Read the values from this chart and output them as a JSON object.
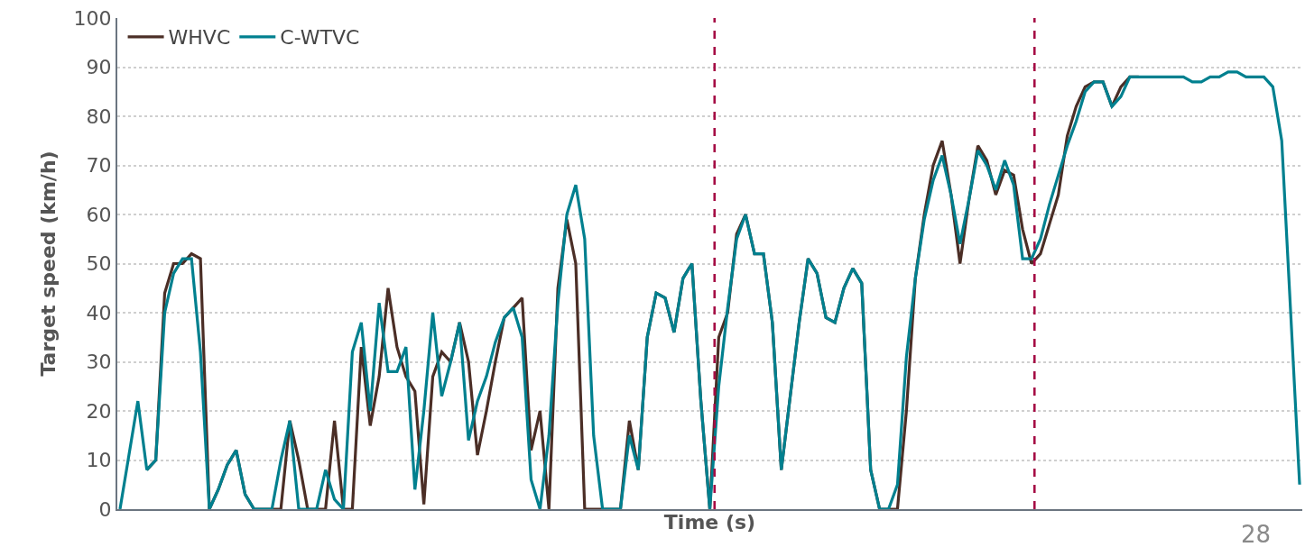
{
  "chart_data": {
    "type": "line",
    "xlabel": "Time (s)",
    "ylabel": "Target speed (km/h)",
    "categories": [
      null,
      null,
      null,
      null,
      null,
      null,
      null,
      null,
      null,
      null,
      null,
      null,
      null,
      null,
      null,
      null,
      null,
      null,
      null,
      null,
      null,
      null,
      null,
      null,
      null,
      null,
      null,
      null,
      null,
      null,
      null,
      null,
      null,
      null,
      null,
      null,
      null,
      null,
      null,
      null,
      null,
      null,
      null,
      null,
      null,
      null,
      null,
      null,
      null,
      null,
      null,
      null,
      null,
      null,
      null,
      null,
      null,
      null,
      null,
      null,
      null,
      null,
      null,
      null,
      null,
      null,
      null,
      null,
      null,
      null,
      null,
      null,
      null,
      null,
      null,
      null,
      null,
      null,
      null,
      null,
      null,
      null,
      null,
      null,
      null,
      null,
      null,
      null,
      null,
      null,
      null,
      null,
      null,
      null,
      null,
      null,
      null,
      null,
      null,
      null,
      null,
      null,
      null,
      null,
      null,
      null,
      null,
      null,
      null,
      null,
      null,
      null,
      null,
      null,
      null,
      null,
      null,
      null,
      null,
      null,
      null,
      null,
      null,
      null,
      null,
      null,
      null,
      null,
      null,
      null,
      null,
      null,
      null
    ],
    "series": [
      {
        "name": "WHVC",
        "color": "#4b2e26",
        "values": [
          null,
          null,
          null,
          8,
          10,
          44,
          50,
          50,
          52,
          51,
          0,
          4,
          9,
          12,
          3,
          0,
          0,
          0,
          0,
          18,
          10,
          0,
          0,
          0,
          18,
          0,
          0,
          33,
          17,
          27,
          45,
          33,
          27,
          24,
          1,
          27,
          32,
          30,
          38,
          30,
          11,
          20,
          30,
          39,
          41,
          43,
          12,
          20,
          0,
          45,
          59,
          50,
          0,
          0,
          0,
          0,
          0,
          18,
          8,
          35,
          44,
          43,
          36,
          47,
          50,
          22,
          0,
          35,
          40,
          56,
          60,
          52,
          52,
          38,
          8,
          23,
          38,
          51,
          48,
          39,
          38,
          45,
          49,
          46,
          8,
          0,
          0,
          0,
          20,
          47,
          60,
          70,
          75,
          64,
          50,
          63,
          74,
          71,
          64,
          69,
          68,
          57,
          50,
          52,
          58,
          64,
          76,
          82,
          86,
          87,
          87,
          82,
          86,
          88,
          88,
          null,
          null,
          null,
          null,
          null,
          null,
          null,
          null,
          null,
          null,
          null,
          null,
          null,
          null,
          null,
          null,
          null,
          null
        ]
      },
      {
        "name": "C-WTVC",
        "color": "#00808f",
        "values": [
          0,
          11,
          22,
          8,
          10,
          40,
          48,
          51,
          51,
          32,
          0,
          4,
          9,
          12,
          3,
          0,
          0,
          0,
          10,
          18,
          0,
          0,
          0,
          8,
          2,
          0,
          32,
          38,
          20,
          42,
          28,
          28,
          33,
          4,
          20,
          40,
          23,
          30,
          38,
          14,
          22,
          27,
          34,
          39,
          41,
          35,
          6,
          0,
          15,
          42,
          60,
          66,
          55,
          15,
          0,
          0,
          0,
          15,
          8,
          35,
          44,
          43,
          36,
          47,
          50,
          22,
          0,
          25,
          41,
          55,
          60,
          52,
          52,
          38,
          8,
          23,
          38,
          51,
          48,
          39,
          38,
          45,
          49,
          46,
          8,
          0,
          0,
          5,
          31,
          47,
          59,
          67,
          72,
          64,
          54,
          63,
          73,
          70,
          65,
          71,
          66,
          51,
          51,
          55,
          62,
          68,
          74,
          79,
          85,
          87,
          87,
          82,
          84,
          88,
          88,
          88,
          88,
          88,
          88,
          88,
          87,
          87,
          88,
          88,
          89,
          89,
          88,
          88,
          88,
          86,
          75,
          40,
          5
        ]
      }
    ],
    "ylim": [
      0,
      100
    ],
    "yticks": [
      0,
      10,
      20,
      30,
      40,
      50,
      60,
      70,
      80,
      90,
      100
    ],
    "grid": "y",
    "legend": "top left",
    "marker": "none",
    "line_style": "solid",
    "annotations": [
      "28"
    ]
  }
}
